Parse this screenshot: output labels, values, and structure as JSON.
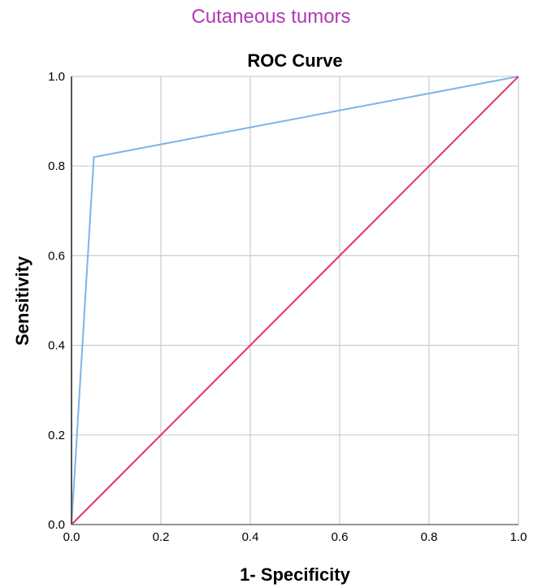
{
  "header": {
    "title": "Cutaneous tumors"
  },
  "chart_data": {
    "type": "line",
    "title": "ROC Curve",
    "xlabel": "1- Specificity",
    "ylabel": "Sensitivity",
    "xlim": [
      0.0,
      1.0
    ],
    "ylim": [
      0.0,
      1.0
    ],
    "x_ticks": [
      "0.0",
      "0.2",
      "0.4",
      "0.6",
      "0.8",
      "1.0"
    ],
    "y_ticks": [
      "0.0",
      "0.2",
      "0.4",
      "0.6",
      "0.8",
      "1.0"
    ],
    "grid": true,
    "series": [
      {
        "x": [
          0.0,
          0.05,
          1.0
        ],
        "y": [
          0.0,
          0.82,
          1.0
        ],
        "color": "#7fb3e8"
      },
      {
        "x": [
          0.0,
          1.0
        ],
        "y": [
          0.0,
          1.0
        ],
        "color": "#e0336b"
      }
    ]
  }
}
